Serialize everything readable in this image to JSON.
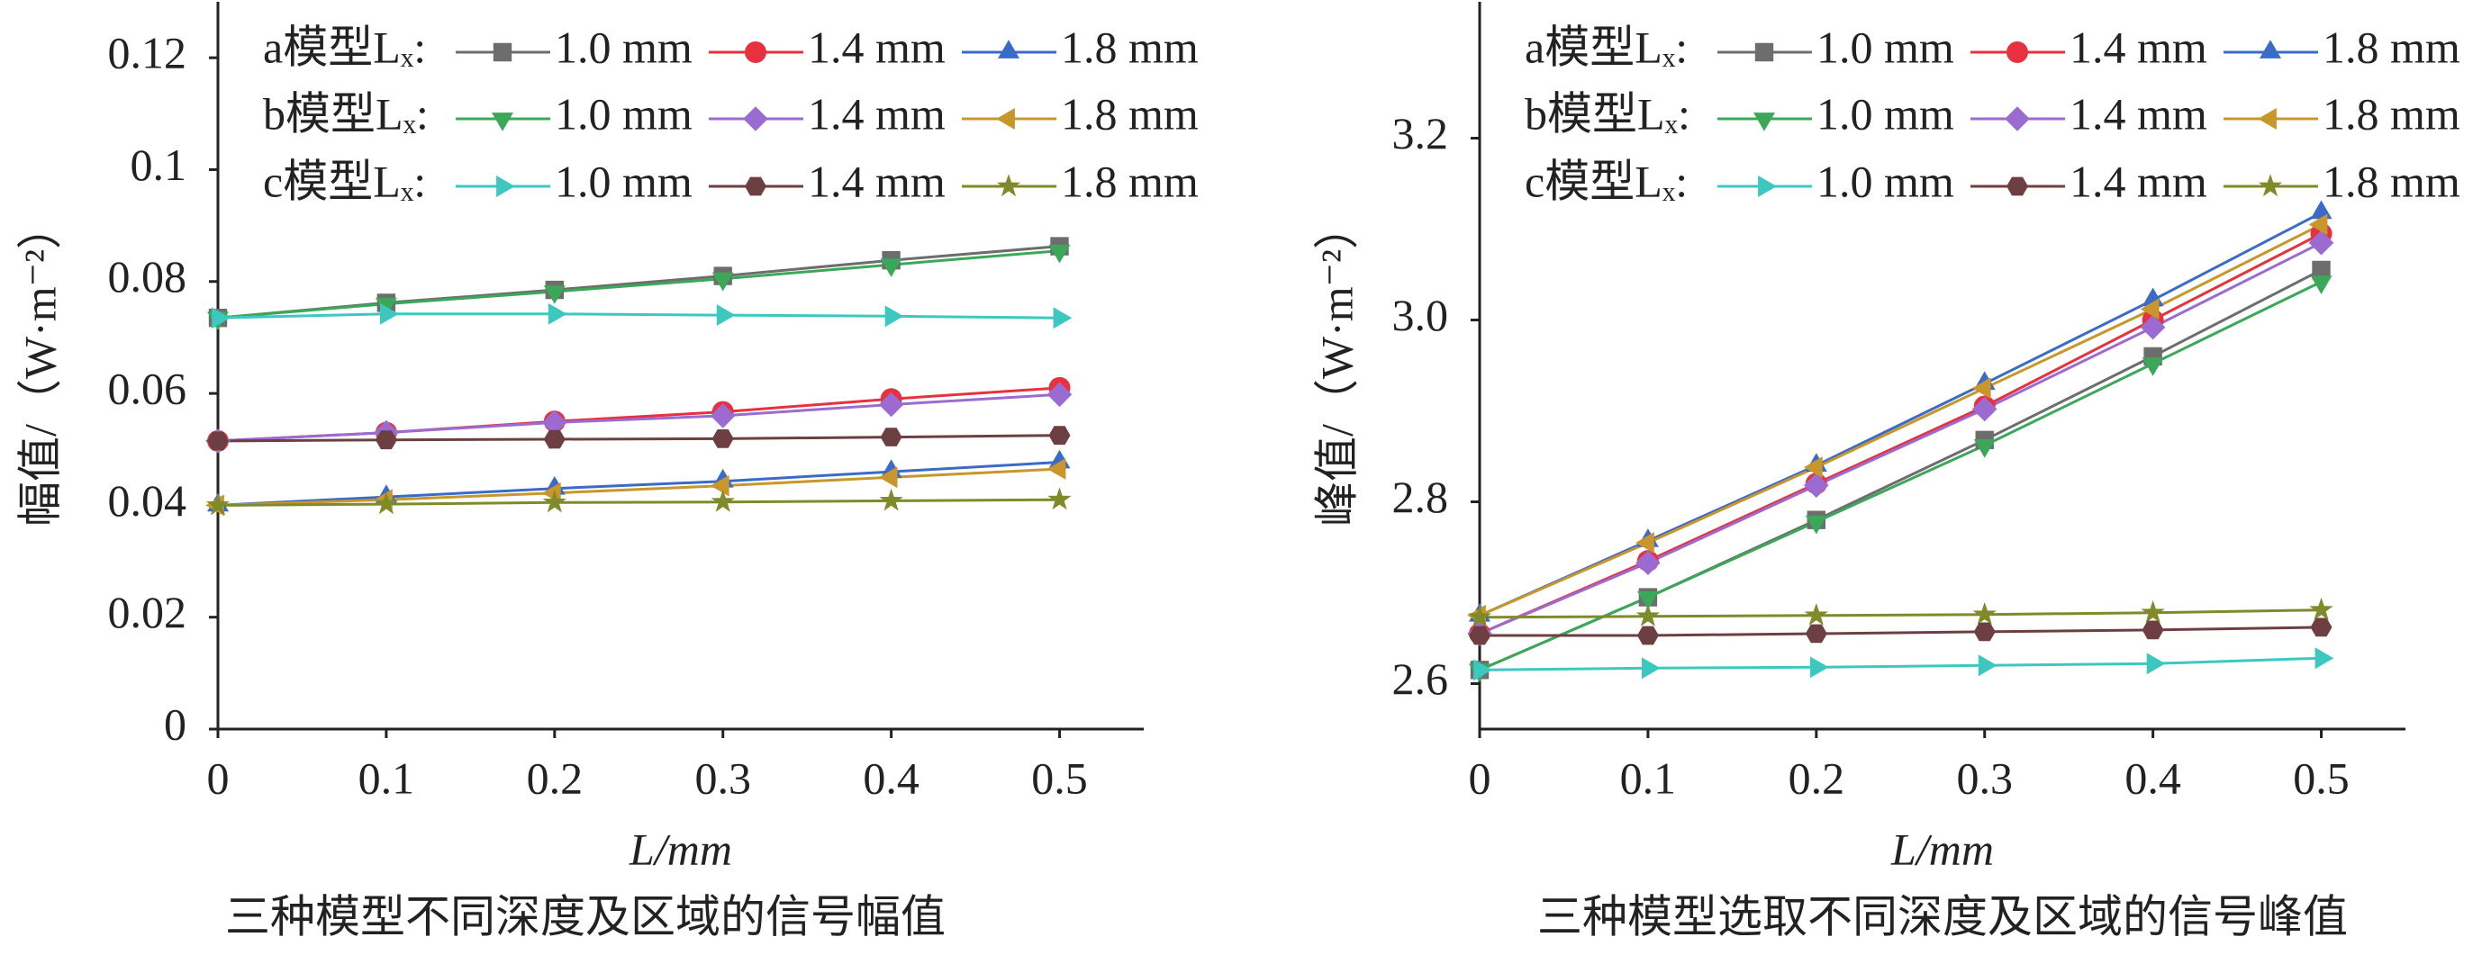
{
  "chart_data": [
    {
      "type": "line",
      "caption": "三种模型不同深度及区域的信号幅值",
      "x_label": "L/mm",
      "y_label": "幅值/（W·m⁻²）",
      "legend_labels": [
        "a模型Lₓ:",
        "b模型Lₓ:",
        "c模型Lₓ:"
      ],
      "x": [
        0,
        0.1,
        0.2,
        0.3,
        0.4,
        0.5
      ],
      "xlim": [
        0,
        0.55
      ],
      "xticks": [
        0,
        0.1,
        0.2,
        0.3,
        0.4,
        0.5
      ],
      "ylim": [
        0,
        0.13
      ],
      "yticks": [
        0,
        0.02,
        0.04,
        0.06,
        0.08,
        0.1,
        0.12
      ],
      "series": [
        {
          "name": "1.0 mm",
          "color": "#6d6d6d",
          "marker": "square",
          "values": [
            0.0735,
            0.0762,
            0.0785,
            0.081,
            0.0838,
            0.0863
          ]
        },
        {
          "name": "1.4 mm",
          "color": "#e8313f",
          "marker": "circle",
          "values": [
            0.0515,
            0.053,
            0.055,
            0.0567,
            0.059,
            0.061
          ]
        },
        {
          "name": "1.8 mm",
          "color": "#3a6bc9",
          "marker": "triangle-up",
          "values": [
            0.04,
            0.0415,
            0.043,
            0.0443,
            0.046,
            0.0477
          ]
        },
        {
          "name": "1.0 mm",
          "color": "#3aa858",
          "marker": "triangle-down",
          "values": [
            0.0735,
            0.076,
            0.0782,
            0.0805,
            0.083,
            0.0855
          ]
        },
        {
          "name": "1.4 mm",
          "color": "#9b6bd1",
          "marker": "diamond",
          "values": [
            0.0515,
            0.053,
            0.0548,
            0.056,
            0.058,
            0.0598
          ]
        },
        {
          "name": "1.8 mm",
          "color": "#c8962a",
          "marker": "triangle-left",
          "values": [
            0.04,
            0.041,
            0.0422,
            0.0435,
            0.045,
            0.0465
          ]
        },
        {
          "name": "1.0 mm",
          "color": "#3cc8c0",
          "marker": "triangle-right",
          "values": [
            0.0735,
            0.0742,
            0.0742,
            0.074,
            0.0738,
            0.0735
          ]
        },
        {
          "name": "1.4 mm",
          "color": "#6e3f42",
          "marker": "hexagon",
          "values": [
            0.0515,
            0.0517,
            0.0518,
            0.0519,
            0.0522,
            0.0525
          ]
        },
        {
          "name": "1.8 mm",
          "color": "#7f8a2a",
          "marker": "star",
          "values": [
            0.04,
            0.0402,
            0.0405,
            0.0406,
            0.0408,
            0.041
          ]
        }
      ]
    },
    {
      "type": "line",
      "caption": "三种模型选取不同深度及区域的信号峰值",
      "x_label": "L/mm",
      "y_label": "峰值/（W·m⁻²）",
      "legend_labels": [
        "a模型Lₓ:",
        "b模型Lₓ:",
        "c模型Lₓ:"
      ],
      "x": [
        0,
        0.1,
        0.2,
        0.3,
        0.4,
        0.5
      ],
      "xlim": [
        0,
        0.55
      ],
      "xticks": [
        0,
        0.1,
        0.2,
        0.3,
        0.4,
        0.5
      ],
      "ylim": [
        2.55,
        3.35
      ],
      "yticks": [
        2.6,
        2.8,
        {
          "value": 3,
          "label": "3.0"
        },
        3.2
      ],
      "series": [
        {
          "name": "1.0 mm",
          "color": "#6d6d6d",
          "marker": "square",
          "values": [
            2.615,
            2.695,
            2.78,
            2.868,
            2.96,
            3.055
          ]
        },
        {
          "name": "1.4 mm",
          "color": "#e8313f",
          "marker": "circle",
          "values": [
            2.655,
            2.735,
            2.82,
            2.905,
            3.0,
            3.095
          ]
        },
        {
          "name": "1.8 mm",
          "color": "#3a6bc9",
          "marker": "triangle-up",
          "values": [
            2.675,
            2.757,
            2.84,
            2.93,
            3.022,
            3.118
          ]
        },
        {
          "name": "1.0 mm",
          "color": "#3aa858",
          "marker": "triangle-down",
          "values": [
            2.615,
            2.695,
            2.778,
            2.862,
            2.952,
            3.042
          ]
        },
        {
          "name": "1.4 mm",
          "color": "#9b6bd1",
          "marker": "diamond",
          "values": [
            2.655,
            2.733,
            2.818,
            2.902,
            2.992,
            3.085
          ]
        },
        {
          "name": "1.8 mm",
          "color": "#c8962a",
          "marker": "triangle-left",
          "values": [
            2.675,
            2.755,
            2.838,
            2.925,
            3.012,
            3.105
          ]
        },
        {
          "name": "1.0 mm",
          "color": "#3cc8c0",
          "marker": "triangle-right",
          "values": [
            2.615,
            2.617,
            2.618,
            2.62,
            2.622,
            2.628
          ]
        },
        {
          "name": "1.4 mm",
          "color": "#6e3f42",
          "marker": "hexagon",
          "values": [
            2.653,
            2.653,
            2.655,
            2.657,
            2.659,
            2.662
          ]
        },
        {
          "name": "1.8 mm",
          "color": "#7f8a2a",
          "marker": "star",
          "values": [
            2.673,
            2.674,
            2.675,
            2.676,
            2.678,
            2.681
          ]
        }
      ]
    }
  ]
}
